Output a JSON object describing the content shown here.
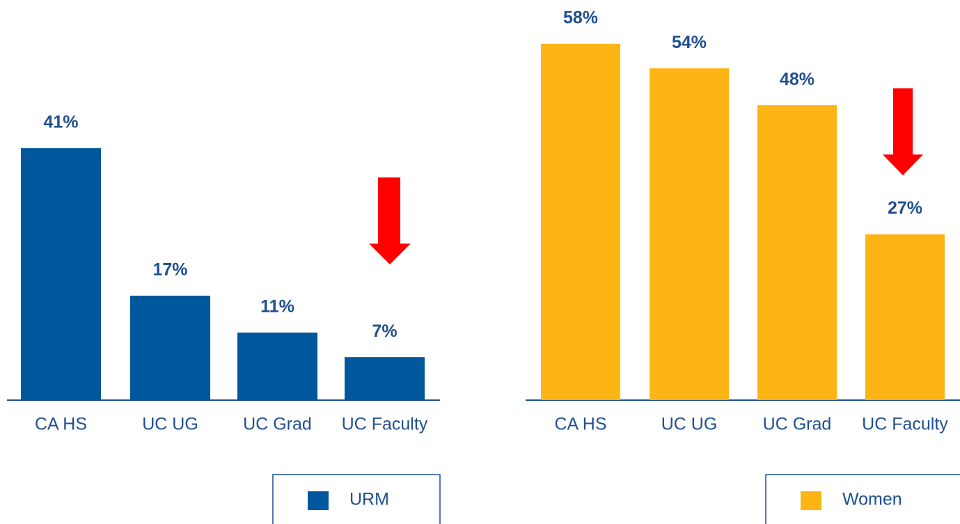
{
  "chart_data": [
    {
      "type": "bar",
      "categories": [
        "CA HS",
        "UC UG",
        "UC Grad",
        "UC Faculty"
      ],
      "series": [
        {
          "name": "URM",
          "color": "#00579b",
          "values": [
            41,
            17,
            11,
            7
          ],
          "value_labels": [
            "41%",
            "17%",
            "11%",
            "7%"
          ]
        }
      ]
    },
    {
      "type": "bar",
      "categories": [
        "CA HS",
        "UC UG",
        "UC Grad",
        "UC Faculty"
      ],
      "series": [
        {
          "name": "Women",
          "color": "#fdb515",
          "values": [
            58,
            54,
            48,
            27
          ],
          "value_labels": [
            "58%",
            "54%",
            "48%",
            "27%"
          ]
        }
      ]
    }
  ]
}
